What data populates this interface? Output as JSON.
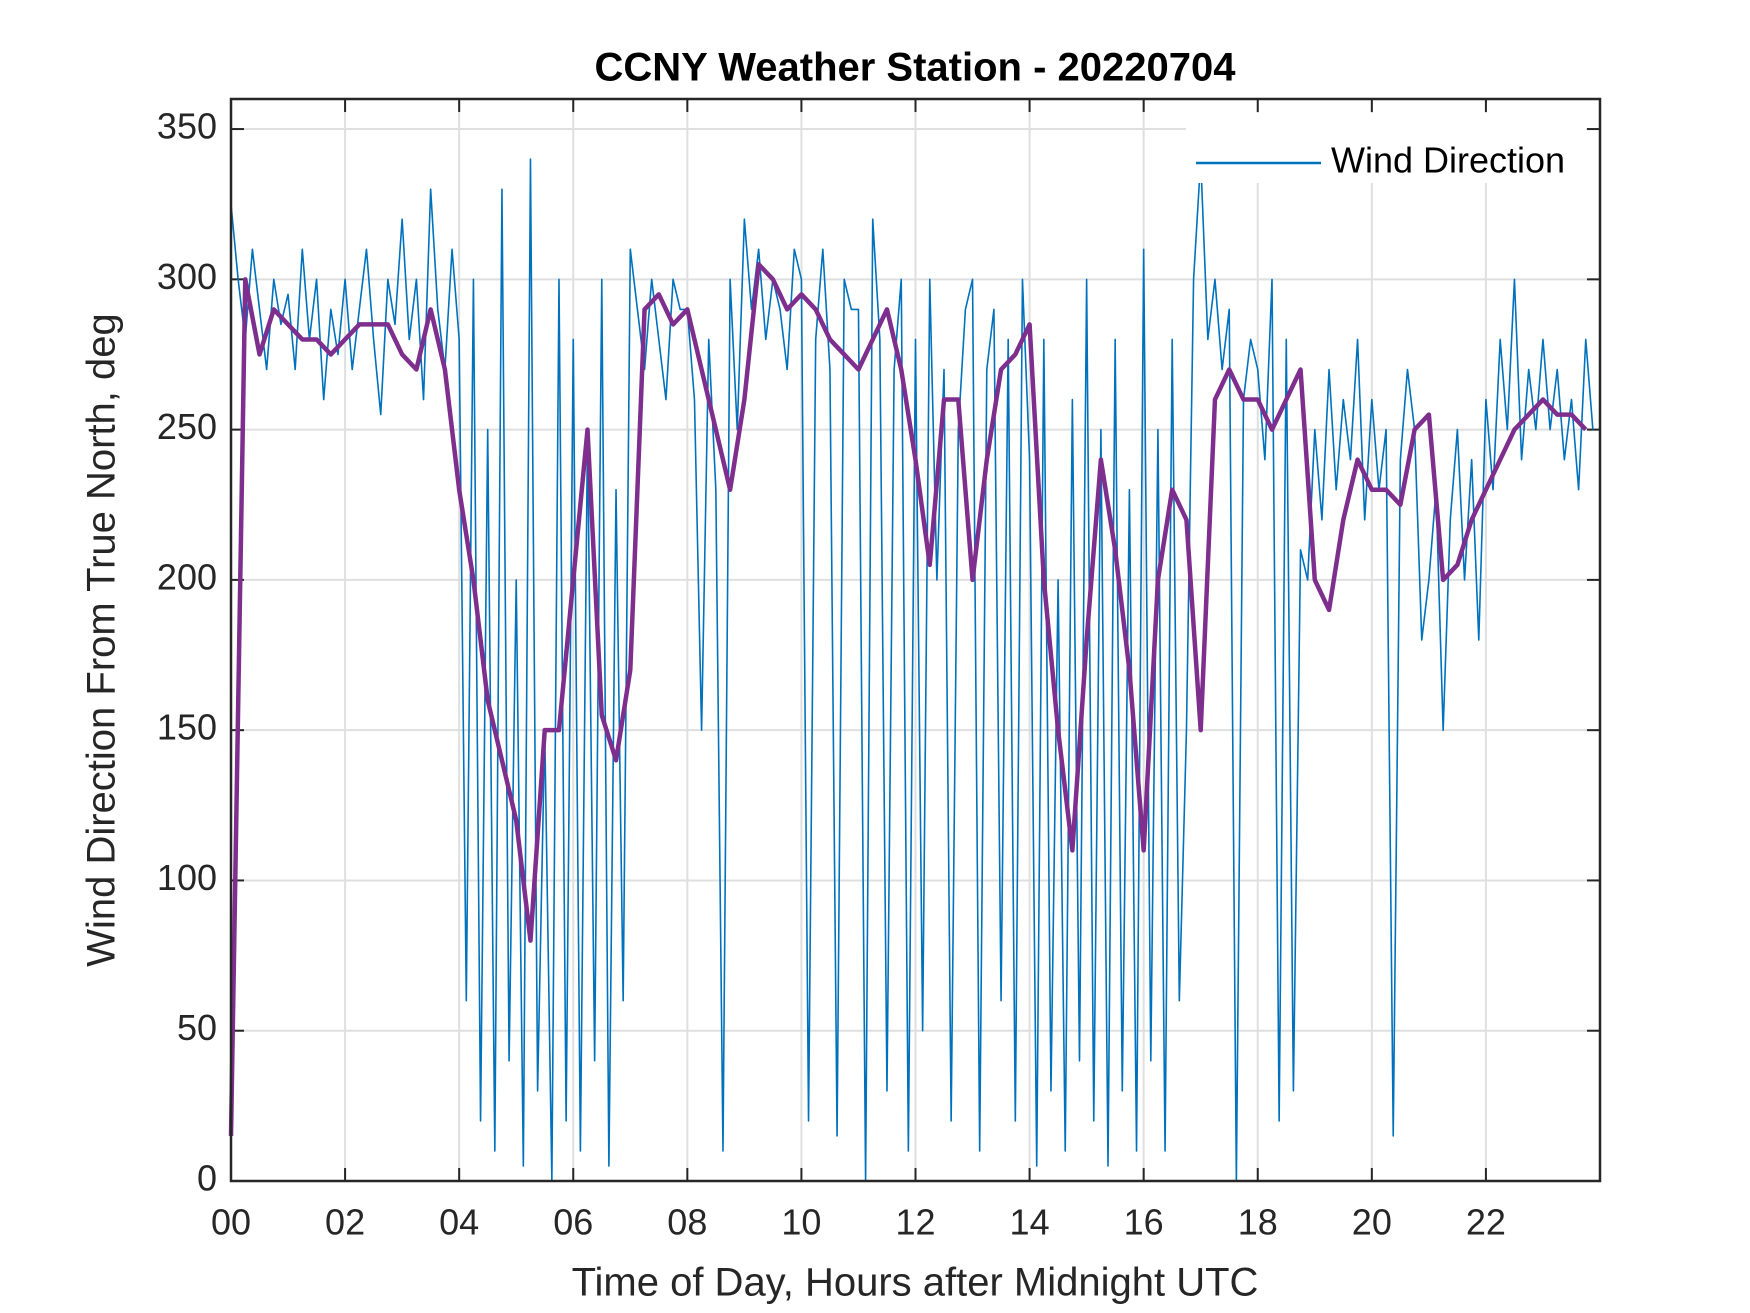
{
  "chart_data": {
    "type": "line",
    "title": "CCNY Weather Station - 20220704",
    "xlabel": "Time of Day, Hours after Midnight UTC",
    "ylabel": "Wind Direction From True North, deg",
    "xlim": [
      0,
      24
    ],
    "ylim": [
      0,
      360
    ],
    "xticks": [
      {
        "value": 0,
        "label": "00"
      },
      {
        "value": 2,
        "label": "02"
      },
      {
        "value": 4,
        "label": "04"
      },
      {
        "value": 6,
        "label": "06"
      },
      {
        "value": 8,
        "label": "08"
      },
      10,
      12,
      14,
      16,
      18,
      20,
      22
    ],
    "yticks": [
      0,
      50,
      100,
      150,
      200,
      250,
      300,
      350
    ],
    "grid": true,
    "legend": "upper right",
    "series": [
      {
        "name": "Wind Direction",
        "color": "#0072bd",
        "x": [
          0,
          0.125,
          0.25,
          0.375,
          0.5,
          0.625,
          0.75,
          0.875,
          1,
          1.125,
          1.25,
          1.375,
          1.5,
          1.625,
          1.75,
          1.875,
          2,
          2.125,
          2.25,
          2.375,
          2.5,
          2.625,
          2.75,
          2.875,
          3,
          3.125,
          3.25,
          3.375,
          3.5,
          3.625,
          3.75,
          3.875,
          4,
          4.125,
          4.25,
          4.375,
          4.5,
          4.625,
          4.75,
          4.875,
          5,
          5.125,
          5.25,
          5.375,
          5.5,
          5.625,
          5.75,
          5.875,
          6,
          6.125,
          6.25,
          6.375,
          6.5,
          6.625,
          6.75,
          6.875,
          7,
          7.125,
          7.25,
          7.375,
          7.5,
          7.625,
          7.75,
          7.875,
          8,
          8.125,
          8.25,
          8.375,
          8.5,
          8.625,
          8.75,
          8.875,
          9,
          9.125,
          9.25,
          9.375,
          9.5,
          9.625,
          9.75,
          9.875,
          10,
          10.125,
          10.25,
          10.375,
          10.5,
          10.625,
          10.75,
          10.875,
          11,
          11.125,
          11.25,
          11.375,
          11.5,
          11.625,
          11.75,
          11.875,
          12,
          12.125,
          12.25,
          12.375,
          12.5,
          12.625,
          12.75,
          12.875,
          13,
          13.125,
          13.25,
          13.375,
          13.5,
          13.625,
          13.75,
          13.875,
          14,
          14.125,
          14.25,
          14.375,
          14.5,
          14.625,
          14.75,
          14.875,
          15,
          15.125,
          15.25,
          15.375,
          15.5,
          15.625,
          15.75,
          15.875,
          16,
          16.125,
          16.25,
          16.375,
          16.5,
          16.625,
          16.75,
          16.875,
          17,
          17.125,
          17.25,
          17.375,
          17.5,
          17.625,
          17.75,
          17.875,
          18,
          18.125,
          18.25,
          18.375,
          18.5,
          18.625,
          18.75,
          18.875,
          19,
          19.125,
          19.25,
          19.375,
          19.5,
          19.625,
          19.75,
          19.875,
          20,
          20.125,
          20.25,
          20.375,
          20.5,
          20.625,
          20.75,
          20.875,
          21,
          21.125,
          21.25,
          21.375,
          21.5,
          21.625,
          21.75,
          21.875,
          22,
          22.125,
          22.25,
          22.375,
          22.5,
          22.625,
          22.75,
          22.875,
          23,
          23.125,
          23.25,
          23.375,
          23.5,
          23.625,
          23.75,
          23.875
        ],
        "values": [
          325,
          300,
          280,
          310,
          290,
          270,
          300,
          285,
          295,
          270,
          310,
          280,
          300,
          260,
          290,
          275,
          300,
          270,
          290,
          310,
          280,
          255,
          300,
          285,
          320,
          280,
          300,
          260,
          330,
          290,
          270,
          310,
          280,
          60,
          300,
          20,
          250,
          10,
          330,
          40,
          200,
          5,
          340,
          30,
          150,
          0,
          300,
          20,
          280,
          10,
          250,
          40,
          300,
          5,
          230,
          60,
          310,
          290,
          270,
          300,
          280,
          260,
          300,
          290,
          290,
          260,
          150,
          280,
          230,
          10,
          300,
          250,
          320,
          290,
          310,
          280,
          300,
          290,
          270,
          310,
          300,
          20,
          280,
          310,
          270,
          15,
          300,
          290,
          290,
          0,
          320,
          280,
          30,
          270,
          300,
          10,
          280,
          50,
          300,
          200,
          270,
          20,
          250,
          290,
          300,
          10,
          270,
          290,
          60,
          280,
          20,
          300,
          240,
          5,
          280,
          30,
          200,
          10,
          260,
          40,
          300,
          20,
          250,
          5,
          280,
          30,
          230,
          10,
          310,
          40,
          250,
          10,
          280,
          60,
          150,
          300,
          340,
          280,
          300,
          270,
          290,
          0,
          260,
          280,
          270,
          240,
          300,
          20,
          280,
          30,
          210,
          200,
          250,
          220,
          270,
          230,
          260,
          240,
          280,
          220,
          260,
          230,
          250,
          15,
          240,
          270,
          250,
          180,
          200,
          230,
          150,
          220,
          250,
          200,
          240,
          180,
          260,
          230,
          280,
          250,
          300,
          240,
          270,
          250,
          280,
          250,
          270,
          240,
          260,
          230,
          280,
          250
        ]
      },
      {
        "color": "#7e2f8e",
        "x": [
          0,
          0.25,
          0.5,
          0.75,
          1,
          1.25,
          1.5,
          1.75,
          2,
          2.25,
          2.5,
          2.75,
          3,
          3.25,
          3.5,
          3.75,
          4,
          4.25,
          4.5,
          4.75,
          5,
          5.25,
          5.5,
          5.75,
          6,
          6.25,
          6.5,
          6.75,
          7,
          7.25,
          7.5,
          7.75,
          8,
          8.25,
          8.5,
          8.75,
          9,
          9.25,
          9.5,
          9.75,
          10,
          10.25,
          10.5,
          10.75,
          11,
          11.25,
          11.5,
          11.75,
          12,
          12.25,
          12.5,
          12.75,
          13,
          13.25,
          13.5,
          13.75,
          14,
          14.25,
          14.5,
          14.75,
          15,
          15.25,
          15.5,
          15.75,
          16,
          16.25,
          16.5,
          16.75,
          17,
          17.25,
          17.5,
          17.75,
          18,
          18.25,
          18.5,
          18.75,
          19,
          19.25,
          19.5,
          19.75,
          20,
          20.25,
          20.5,
          20.75,
          21,
          21.25,
          21.5,
          21.75,
          22,
          22.25,
          22.5,
          22.75,
          23,
          23.25,
          23.5,
          23.75
        ],
        "values": [
          15,
          300,
          275,
          290,
          285,
          280,
          280,
          275,
          280,
          285,
          285,
          285,
          275,
          270,
          290,
          270,
          230,
          200,
          160,
          140,
          120,
          80,
          150,
          150,
          200,
          250,
          155,
          140,
          170,
          290,
          295,
          285,
          290,
          270,
          250,
          230,
          260,
          305,
          300,
          290,
          295,
          290,
          280,
          275,
          270,
          280,
          290,
          270,
          240,
          205,
          260,
          260,
          200,
          240,
          270,
          275,
          285,
          200,
          150,
          110,
          180,
          240,
          210,
          170,
          110,
          200,
          230,
          220,
          150,
          260,
          270,
          260,
          260,
          250,
          260,
          270,
          200,
          190,
          220,
          240,
          230,
          230,
          225,
          250,
          255,
          200,
          205,
          220,
          230,
          240,
          250,
          255,
          260,
          255,
          255,
          250
        ]
      }
    ]
  }
}
